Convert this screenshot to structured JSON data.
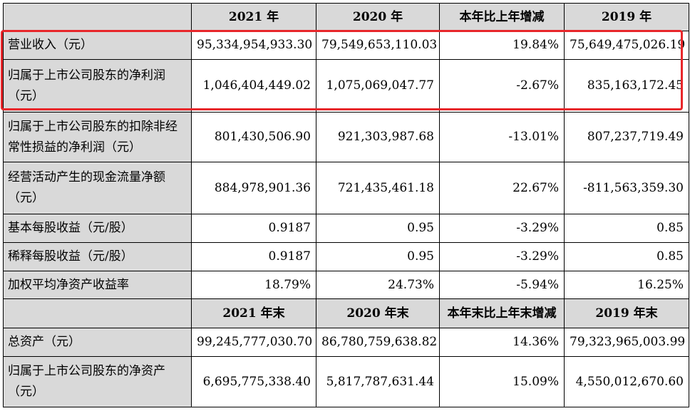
{
  "header1": [
    "2021 年",
    "2020 年",
    "本年比上年增减",
    "2019 年"
  ],
  "rows1": [
    {
      "label": "营业收入（元）",
      "values": [
        "95,334,954,933.30",
        "79,549,653,110.03",
        "19.84%",
        "75,649,475,026.19"
      ]
    },
    {
      "label": "归属于上市公司股东的净利润（元）",
      "values": [
        "1,046,404,449.02",
        "1,075,069,047.77",
        "-2.67%",
        "835,163,172.45"
      ]
    },
    {
      "label": "归属于上市公司股东的扣除非经常性损益的净利润（元）",
      "values": [
        "801,430,506.90",
        "921,303,987.68",
        "-13.01%",
        "807,237,719.49"
      ]
    },
    {
      "label": "经营活动产生的现金流量净额（元）",
      "values": [
        "884,978,901.36",
        "721,435,461.18",
        "22.67%",
        "-811,563,359.30"
      ]
    },
    {
      "label": "基本每股收益（元/股）",
      "values": [
        "0.9187",
        "0.95",
        "-3.29%",
        "0.85"
      ]
    },
    {
      "label": "稀释每股收益（元/股）",
      "values": [
        "0.9187",
        "0.95",
        "-3.29%",
        "0.85"
      ]
    },
    {
      "label": "加权平均净资产收益率",
      "values": [
        "18.79%",
        "24.73%",
        "-5.94%",
        "16.25%"
      ]
    }
  ],
  "header2": [
    "2021 年末",
    "2020 年末",
    "本年末比上年末增减",
    "2019 年末"
  ],
  "rows2": [
    {
      "label": "总资产（元）",
      "values": [
        "99,245,777,030.70",
        "86,780,759,638.82",
        "14.36%",
        "79,323,965,003.99"
      ]
    },
    {
      "label": "归属于上市公司股东的净资产（元）",
      "values": [
        "6,695,775,338.40",
        "5,817,787,631.44",
        "15.09%",
        "4,550,012,670.60"
      ]
    }
  ],
  "colors": {
    "header_bg": "#d9d9d9",
    "highlight": "#e8262a"
  }
}
